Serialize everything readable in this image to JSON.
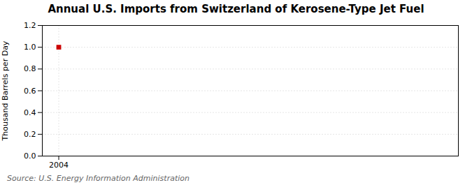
{
  "chart_data": {
    "type": "scatter",
    "title": "Annual U.S. Imports from Switzerland of Kerosene-Type Jet Fuel",
    "ylabel": "Thousand Barrels per Day",
    "caption": "Source: U.S. Energy Information Administration",
    "x": [
      2004
    ],
    "values": [
      1.0
    ],
    "color": "#cc0000",
    "marker": "square",
    "xlim": [
      2003.3,
      2021
    ],
    "xticks": [
      2004
    ],
    "ylim": [
      0.0,
      1.2
    ],
    "yticks": [
      {
        "value": 0.0,
        "label": "0.0"
      },
      0.2,
      0.4,
      0.6,
      0.8,
      {
        "value": 1.0,
        "label": "1.0"
      },
      1.2
    ],
    "grid": true
  }
}
